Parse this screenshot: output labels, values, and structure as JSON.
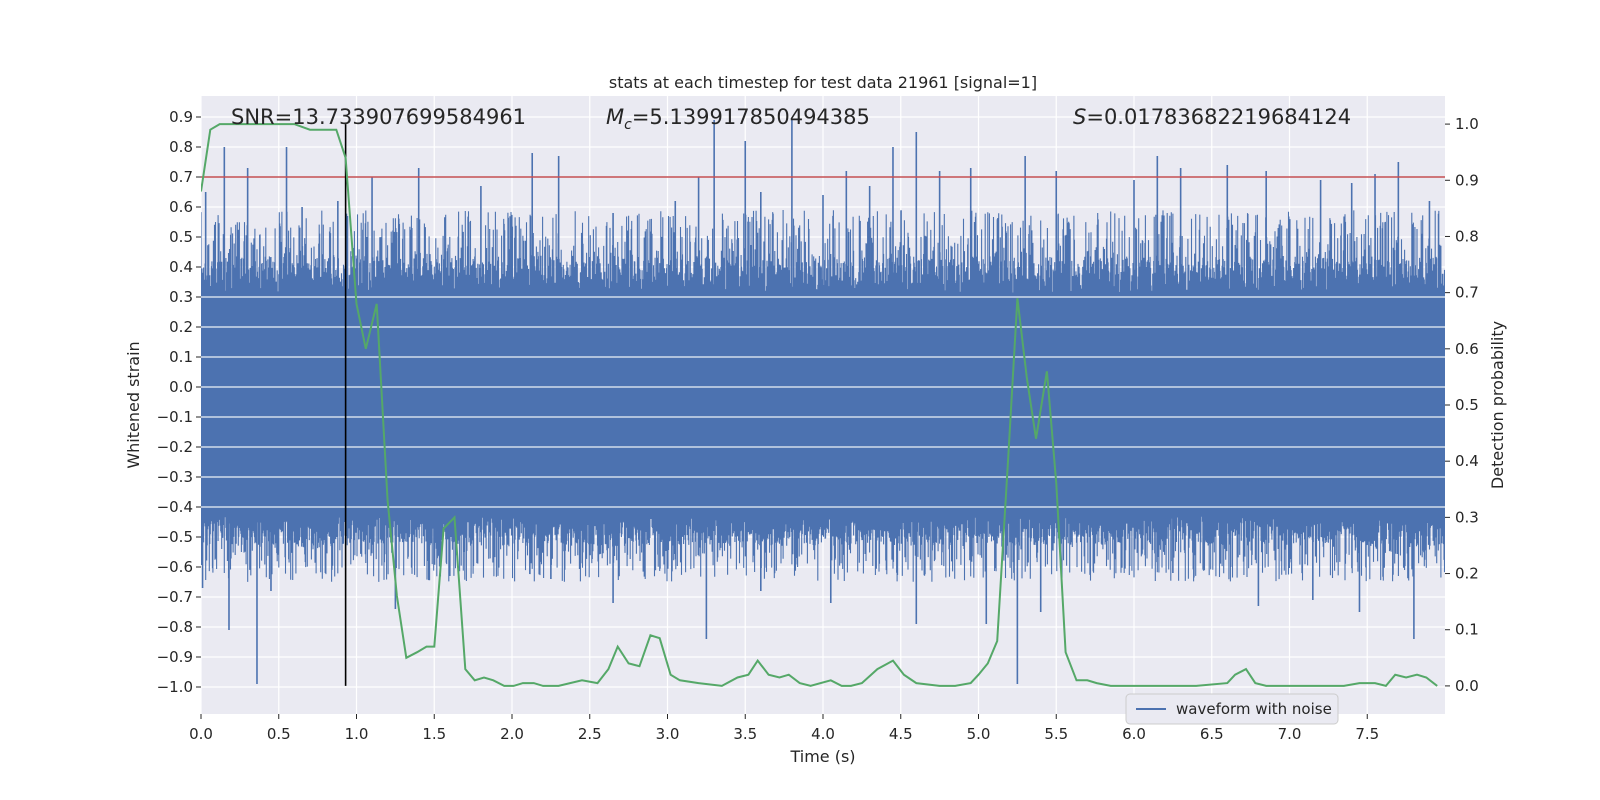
{
  "chart_data": {
    "type": "line",
    "title": "stats at each timestep for test data 21961 [signal=1]",
    "xlabel": "Time (s)",
    "ylabel": "Whitened strain",
    "ylabel_right": "Detection probability",
    "xlim": [
      0.0,
      8.0
    ],
    "ylim": [
      -1.09,
      0.97
    ],
    "ylim_right": [
      -0.05,
      1.05
    ],
    "xticks": [
      "0.0",
      "0.5",
      "1.0",
      "1.5",
      "2.0",
      "2.5",
      "3.0",
      "3.5",
      "4.0",
      "4.5",
      "5.0",
      "5.5",
      "6.0",
      "6.5",
      "7.0",
      "7.5"
    ],
    "yticks": [
      "0.9",
      "0.8",
      "0.7",
      "0.6",
      "0.5",
      "0.4",
      "0.3",
      "0.2",
      "0.1",
      "0.0",
      "-0.1",
      "-0.2",
      "-0.3",
      "-0.4",
      "-0.5",
      "-0.6",
      "-0.7",
      "-0.8",
      "-0.9",
      "-1.0"
    ],
    "yticks_right": [
      "1.0",
      "0.9",
      "0.8",
      "0.7",
      "0.6",
      "0.5",
      "0.4",
      "0.3",
      "0.2",
      "0.1",
      "0.0"
    ],
    "annotations": {
      "snr": "SNR=13.733907699584961",
      "mc": "=5.139917850494385",
      "s": "=0.01783682219684124"
    },
    "threshold": 0.7,
    "marker_time": 0.93,
    "legend": {
      "label": "waveform with noise",
      "placement": "lower-right"
    },
    "colors": {
      "waveform": "#4c72b0",
      "probability": "#55a868",
      "threshold": "#c44e52",
      "marker": "#000000",
      "background": "#eaeaf2",
      "grid": "#ffffff"
    },
    "series": [
      {
        "name": "waveform with noise",
        "axis": "left",
        "envelope_upper": 0.31,
        "envelope_lower": -0.43,
        "spikes": [
          [
            0.03,
            0.65
          ],
          [
            0.15,
            0.8
          ],
          [
            0.3,
            0.73
          ],
          [
            0.55,
            0.8
          ],
          [
            0.65,
            0.6
          ],
          [
            0.88,
            0.62
          ],
          [
            1.1,
            0.7
          ],
          [
            1.4,
            0.73
          ],
          [
            1.8,
            0.67
          ],
          [
            2.13,
            0.78
          ],
          [
            2.3,
            0.77
          ],
          [
            2.65,
            0.58
          ],
          [
            3.05,
            0.62
          ],
          [
            3.2,
            0.7
          ],
          [
            3.3,
            0.89
          ],
          [
            3.5,
            0.82
          ],
          [
            3.6,
            0.65
          ],
          [
            3.8,
            0.89
          ],
          [
            4.0,
            0.64
          ],
          [
            4.15,
            0.72
          ],
          [
            4.3,
            0.67
          ],
          [
            4.45,
            0.8
          ],
          [
            4.6,
            0.85
          ],
          [
            4.75,
            0.72
          ],
          [
            4.95,
            0.73
          ],
          [
            5.3,
            0.77
          ],
          [
            5.5,
            0.72
          ],
          [
            6.0,
            0.69
          ],
          [
            6.15,
            0.77
          ],
          [
            6.3,
            0.73
          ],
          [
            6.6,
            0.74
          ],
          [
            6.85,
            0.72
          ],
          [
            7.2,
            0.69
          ],
          [
            7.4,
            0.68
          ],
          [
            7.55,
            0.71
          ],
          [
            7.7,
            0.75
          ],
          [
            7.9,
            0.62
          ],
          [
            0.01,
            -0.67
          ],
          [
            0.18,
            -0.81
          ],
          [
            0.36,
            -0.99
          ],
          [
            0.45,
            -0.68
          ],
          [
            0.8,
            -0.62
          ],
          [
            1.25,
            -0.74
          ],
          [
            1.6,
            -0.63
          ],
          [
            2.25,
            -0.64
          ],
          [
            2.65,
            -0.72
          ],
          [
            3.25,
            -0.84
          ],
          [
            3.6,
            -0.68
          ],
          [
            4.05,
            -0.72
          ],
          [
            4.6,
            -0.79
          ],
          [
            5.05,
            -0.79
          ],
          [
            5.25,
            -0.99
          ],
          [
            5.4,
            -0.75
          ],
          [
            6.25,
            -0.62
          ],
          [
            6.8,
            -0.73
          ],
          [
            7.15,
            -0.71
          ],
          [
            7.45,
            -0.75
          ],
          [
            7.8,
            -0.84
          ]
        ]
      },
      {
        "name": "detection probability",
        "axis": "right",
        "x": [
          0.0,
          0.06,
          0.12,
          0.2,
          0.3,
          0.4,
          0.5,
          0.6,
          0.7,
          0.8,
          0.87,
          0.93,
          1.0,
          1.06,
          1.13,
          1.2,
          1.26,
          1.32,
          1.39,
          1.45,
          1.5,
          1.56,
          1.63,
          1.7,
          1.76,
          1.82,
          1.88,
          1.95,
          2.01,
          2.07,
          2.14,
          2.2,
          2.3,
          2.45,
          2.55,
          2.62,
          2.68,
          2.75,
          2.82,
          2.89,
          2.95,
          3.02,
          3.08,
          3.2,
          3.35,
          3.45,
          3.52,
          3.58,
          3.65,
          3.72,
          3.78,
          3.85,
          3.92,
          4.05,
          4.12,
          4.18,
          4.25,
          4.35,
          4.45,
          4.52,
          4.6,
          4.75,
          4.85,
          4.95,
          5.0,
          5.06,
          5.12,
          5.19,
          5.25,
          5.31,
          5.37,
          5.44,
          5.5,
          5.56,
          5.63,
          5.7,
          5.76,
          5.85,
          6.0,
          6.2,
          6.4,
          6.6,
          6.65,
          6.72,
          6.78,
          6.85,
          7.0,
          7.2,
          7.35,
          7.45,
          7.55,
          7.62,
          7.68,
          7.75,
          7.82,
          7.88,
          7.95
        ],
        "y": [
          0.88,
          0.99,
          1.0,
          1.0,
          1.0,
          1.0,
          1.0,
          1.0,
          0.99,
          0.99,
          0.99,
          0.94,
          0.68,
          0.6,
          0.68,
          0.33,
          0.16,
          0.05,
          0.06,
          0.07,
          0.07,
          0.28,
          0.3,
          0.03,
          0.01,
          0.015,
          0.01,
          0.0,
          0.0,
          0.005,
          0.005,
          0.0,
          0.0,
          0.01,
          0.005,
          0.03,
          0.07,
          0.04,
          0.035,
          0.09,
          0.085,
          0.02,
          0.01,
          0.005,
          0.0,
          0.015,
          0.02,
          0.045,
          0.02,
          0.015,
          0.02,
          0.005,
          0.0,
          0.01,
          0.0,
          0.0,
          0.005,
          0.03,
          0.045,
          0.02,
          0.005,
          0.0,
          0.0,
          0.005,
          0.02,
          0.04,
          0.08,
          0.4,
          0.69,
          0.55,
          0.44,
          0.56,
          0.36,
          0.06,
          0.01,
          0.01,
          0.005,
          0.0,
          0.0,
          0.0,
          0.0,
          0.005,
          0.02,
          0.03,
          0.005,
          0.0,
          0.0,
          0.0,
          0.0,
          0.005,
          0.005,
          0.0,
          0.02,
          0.015,
          0.02,
          0.015,
          0.0
        ]
      }
    ]
  }
}
